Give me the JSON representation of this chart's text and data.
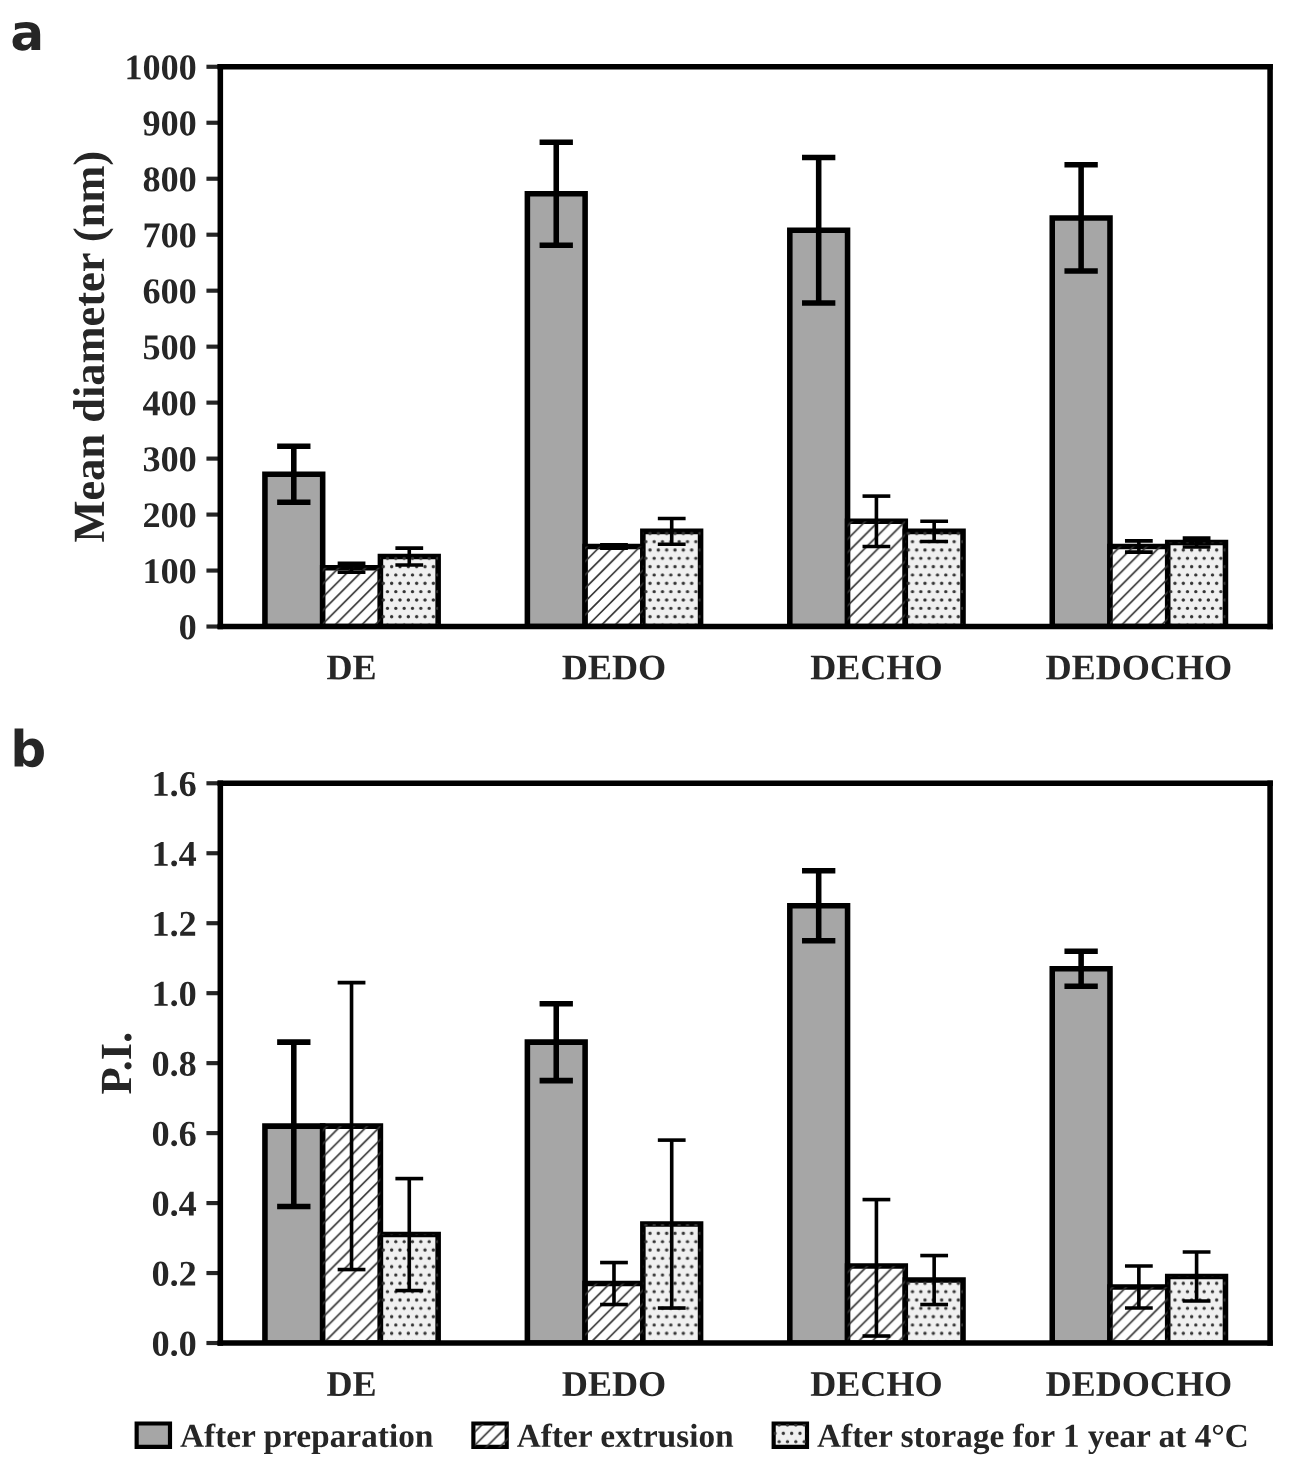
{
  "chart_data": [
    {
      "type": "bar",
      "title": "a",
      "ylabel": "Mean diameter (nm)",
      "categories": [
        "DE",
        "DEDO",
        "DECHO",
        "DEDOCHO"
      ],
      "ylim": [
        0,
        1000
      ],
      "yticks": [
        0,
        100,
        200,
        300,
        400,
        500,
        600,
        700,
        800,
        900,
        1000
      ],
      "grid": false,
      "legend": false,
      "series": [
        {
          "color": "#a6a6a6",
          "values": [
            272,
            773,
            708,
            730
          ],
          "errors": [
            50,
            92,
            130,
            95
          ]
        },
        {
          "color": "#ffffff",
          "values": [
            105,
            143,
            188,
            143
          ],
          "errors": [
            8,
            3,
            45,
            10
          ]
        },
        {
          "color": "#f0f0f0",
          "values": [
            125,
            170,
            170,
            150
          ],
          "errors": [
            15,
            23,
            18,
            8
          ]
        }
      ]
    },
    {
      "type": "bar",
      "title": "b",
      "ylabel": "P.I.",
      "categories": [
        "DE",
        "DEDO",
        "DECHO",
        "DEDOCHO"
      ],
      "ylim": [
        0,
        1.6
      ],
      "yticks": [
        {
          "value": 0,
          "label": "0.0"
        },
        0.2,
        0.4,
        0.6,
        0.8,
        {
          "value": 1,
          "label": "1.0"
        },
        1.2,
        1.4,
        1.6
      ],
      "grid": false,
      "legend": "bottom",
      "series": [
        {
          "name": "After preparation",
          "color": "#a6a6a6",
          "values": [
            0.62,
            0.86,
            1.25,
            1.07
          ],
          "errors": [
            [
              0.39,
              0.86
            ],
            0.11,
            0.1,
            0.05
          ]
        },
        {
          "name": "After extrusion",
          "color": "#ffffff",
          "values": [
            0.62,
            0.17,
            0.22,
            0.16
          ],
          "errors": [
            [
              0.21,
              1.03
            ],
            0.06,
            [
              0.02,
              0.41
            ],
            0.06
          ]
        },
        {
          "name": "After storage for 1 year at 4°C",
          "color": "#f0f0f0",
          "values": [
            0.31,
            0.34,
            0.18,
            0.19
          ],
          "errors": [
            [
              0.15,
              0.47
            ],
            [
              0.1,
              0.58
            ],
            0.07,
            0.07
          ]
        }
      ]
    }
  ]
}
